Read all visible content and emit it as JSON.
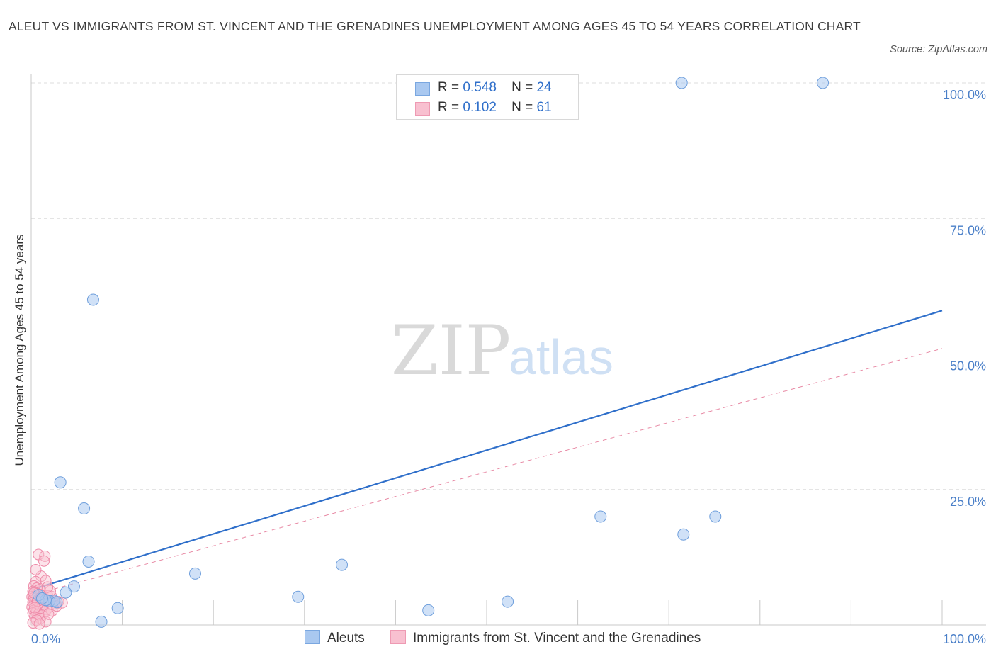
{
  "title": "ALEUT VS IMMIGRANTS FROM ST. VINCENT AND THE GRENADINES UNEMPLOYMENT AMONG AGES 45 TO 54 YEARS CORRELATION CHART",
  "source": "Source: ZipAtlas.com",
  "watermark": {
    "zip": "ZIP",
    "atlas": "atlas"
  },
  "legend": {
    "rows": [
      {
        "r_label": "R =",
        "r_value": "0.548",
        "n_label": "N =",
        "n_value": "24",
        "color": "#a9c8f0",
        "border": "#7aa7e0"
      },
      {
        "r_label": "R =",
        "r_value": "0.102",
        "n_label": "N =",
        "n_value": "61",
        "color": "#f8c0d0",
        "border": "#ee9ab3"
      }
    ]
  },
  "bottom_legend": [
    {
      "label": "Aleuts",
      "color": "#a9c8f0",
      "border": "#7aa7e0"
    },
    {
      "label": "Immigrants from St. Vincent and the Grenadines",
      "color": "#f8c0d0",
      "border": "#ee9ab3"
    }
  ],
  "chart_data": {
    "type": "scatter",
    "title": "ALEUT VS IMMIGRANTS FROM ST. VINCENT AND THE GRENADINES UNEMPLOYMENT AMONG AGES 45 TO 54 YEARS CORRELATION CHART",
    "xlabel": "",
    "ylabel": "Unemployment Among Ages 45 to 54 years",
    "xlim": [
      0,
      100
    ],
    "ylim": [
      0,
      100
    ],
    "x_tick_labels": [
      "0.0%",
      "100.0%"
    ],
    "y_ticks": [
      25,
      50,
      75,
      100
    ],
    "y_tick_labels": [
      "25.0%",
      "50.0%",
      "75.0%",
      "100.0%"
    ],
    "grid": true,
    "series": [
      {
        "name": "Aleuts",
        "color": "#a9c8f0",
        "edge": "#6f9fdc",
        "trend": {
          "x": [
            0,
            100
          ],
          "y": [
            6.5,
            58.0
          ],
          "color": "#2f6fca",
          "style": "solid"
        },
        "points": [
          {
            "x": 71.4,
            "y": 100.0
          },
          {
            "x": 86.9,
            "y": 100.0
          },
          {
            "x": 6.8,
            "y": 60.0
          },
          {
            "x": 3.2,
            "y": 26.3
          },
          {
            "x": 5.8,
            "y": 21.5
          },
          {
            "x": 62.5,
            "y": 20.0
          },
          {
            "x": 75.1,
            "y": 20.0
          },
          {
            "x": 71.6,
            "y": 16.7
          },
          {
            "x": 6.3,
            "y": 11.7
          },
          {
            "x": 34.1,
            "y": 11.1
          },
          {
            "x": 18.0,
            "y": 9.5
          },
          {
            "x": 4.7,
            "y": 7.1
          },
          {
            "x": 3.8,
            "y": 6.0
          },
          {
            "x": 29.3,
            "y": 5.2
          },
          {
            "x": 2.5,
            "y": 4.5
          },
          {
            "x": 2.0,
            "y": 4.4
          },
          {
            "x": 1.6,
            "y": 4.6
          },
          {
            "x": 52.3,
            "y": 4.3
          },
          {
            "x": 9.5,
            "y": 3.1
          },
          {
            "x": 43.6,
            "y": 2.7
          },
          {
            "x": 7.7,
            "y": 0.6
          },
          {
            "x": 0.8,
            "y": 5.5
          },
          {
            "x": 1.2,
            "y": 4.9
          },
          {
            "x": 2.8,
            "y": 4.2
          }
        ]
      },
      {
        "name": "Immigrants from St. Vincent and the Grenadines",
        "color": "#f8c0d0",
        "edge": "#ee8aa8",
        "trend": {
          "x": [
            0,
            100
          ],
          "y": [
            5.5,
            51.0
          ],
          "color": "#e88aa5",
          "style": "dashed"
        },
        "points": [
          {
            "x": 0.8,
            "y": 13.0
          },
          {
            "x": 1.5,
            "y": 12.7
          },
          {
            "x": 1.4,
            "y": 11.8
          },
          {
            "x": 1.1,
            "y": 9.0
          },
          {
            "x": 1.6,
            "y": 8.2
          },
          {
            "x": 0.5,
            "y": 8.0
          },
          {
            "x": 0.3,
            "y": 7.2
          },
          {
            "x": 0.6,
            "y": 6.8
          },
          {
            "x": 0.9,
            "y": 6.5
          },
          {
            "x": 0.2,
            "y": 6.2
          },
          {
            "x": 0.4,
            "y": 6.0
          },
          {
            "x": 0.7,
            "y": 5.8
          },
          {
            "x": 1.0,
            "y": 5.6
          },
          {
            "x": 1.3,
            "y": 5.5
          },
          {
            "x": 1.8,
            "y": 5.4
          },
          {
            "x": 2.2,
            "y": 5.3
          },
          {
            "x": 0.1,
            "y": 5.2
          },
          {
            "x": 0.3,
            "y": 5.0
          },
          {
            "x": 0.5,
            "y": 4.9
          },
          {
            "x": 0.8,
            "y": 4.8
          },
          {
            "x": 1.2,
            "y": 4.7
          },
          {
            "x": 1.6,
            "y": 4.6
          },
          {
            "x": 2.0,
            "y": 4.5
          },
          {
            "x": 2.5,
            "y": 4.4
          },
          {
            "x": 3.0,
            "y": 4.3
          },
          {
            "x": 0.2,
            "y": 4.2
          },
          {
            "x": 0.6,
            "y": 4.1
          },
          {
            "x": 1.0,
            "y": 4.0
          },
          {
            "x": 1.4,
            "y": 3.9
          },
          {
            "x": 1.9,
            "y": 3.8
          },
          {
            "x": 2.7,
            "y": 3.9
          },
          {
            "x": 0.4,
            "y": 3.6
          },
          {
            "x": 0.9,
            "y": 3.5
          },
          {
            "x": 1.3,
            "y": 3.4
          },
          {
            "x": 0.1,
            "y": 3.3
          },
          {
            "x": 0.7,
            "y": 3.1
          },
          {
            "x": 1.1,
            "y": 3.0
          },
          {
            "x": 1.7,
            "y": 2.9
          },
          {
            "x": 0.3,
            "y": 2.7
          },
          {
            "x": 0.6,
            "y": 2.5
          },
          {
            "x": 1.5,
            "y": 2.4
          },
          {
            "x": 2.3,
            "y": 2.6
          },
          {
            "x": 0.2,
            "y": 2.2
          },
          {
            "x": 0.8,
            "y": 2.0
          },
          {
            "x": 1.2,
            "y": 1.8
          },
          {
            "x": 0.4,
            "y": 1.5
          },
          {
            "x": 1.0,
            "y": 1.2
          },
          {
            "x": 0.6,
            "y": 0.9
          },
          {
            "x": 1.6,
            "y": 0.6
          },
          {
            "x": 0.2,
            "y": 0.4
          },
          {
            "x": 0.9,
            "y": 0.2
          },
          {
            "x": 2.8,
            "y": 3.5
          },
          {
            "x": 3.4,
            "y": 4.1
          },
          {
            "x": 2.1,
            "y": 6.3
          },
          {
            "x": 1.8,
            "y": 7.0
          },
          {
            "x": 0.5,
            "y": 10.2
          },
          {
            "x": 1.9,
            "y": 2.0
          },
          {
            "x": 0.3,
            "y": 5.9
          },
          {
            "x": 0.7,
            "y": 4.4
          },
          {
            "x": 1.1,
            "y": 5.1
          },
          {
            "x": 0.4,
            "y": 3.2
          }
        ]
      }
    ]
  }
}
